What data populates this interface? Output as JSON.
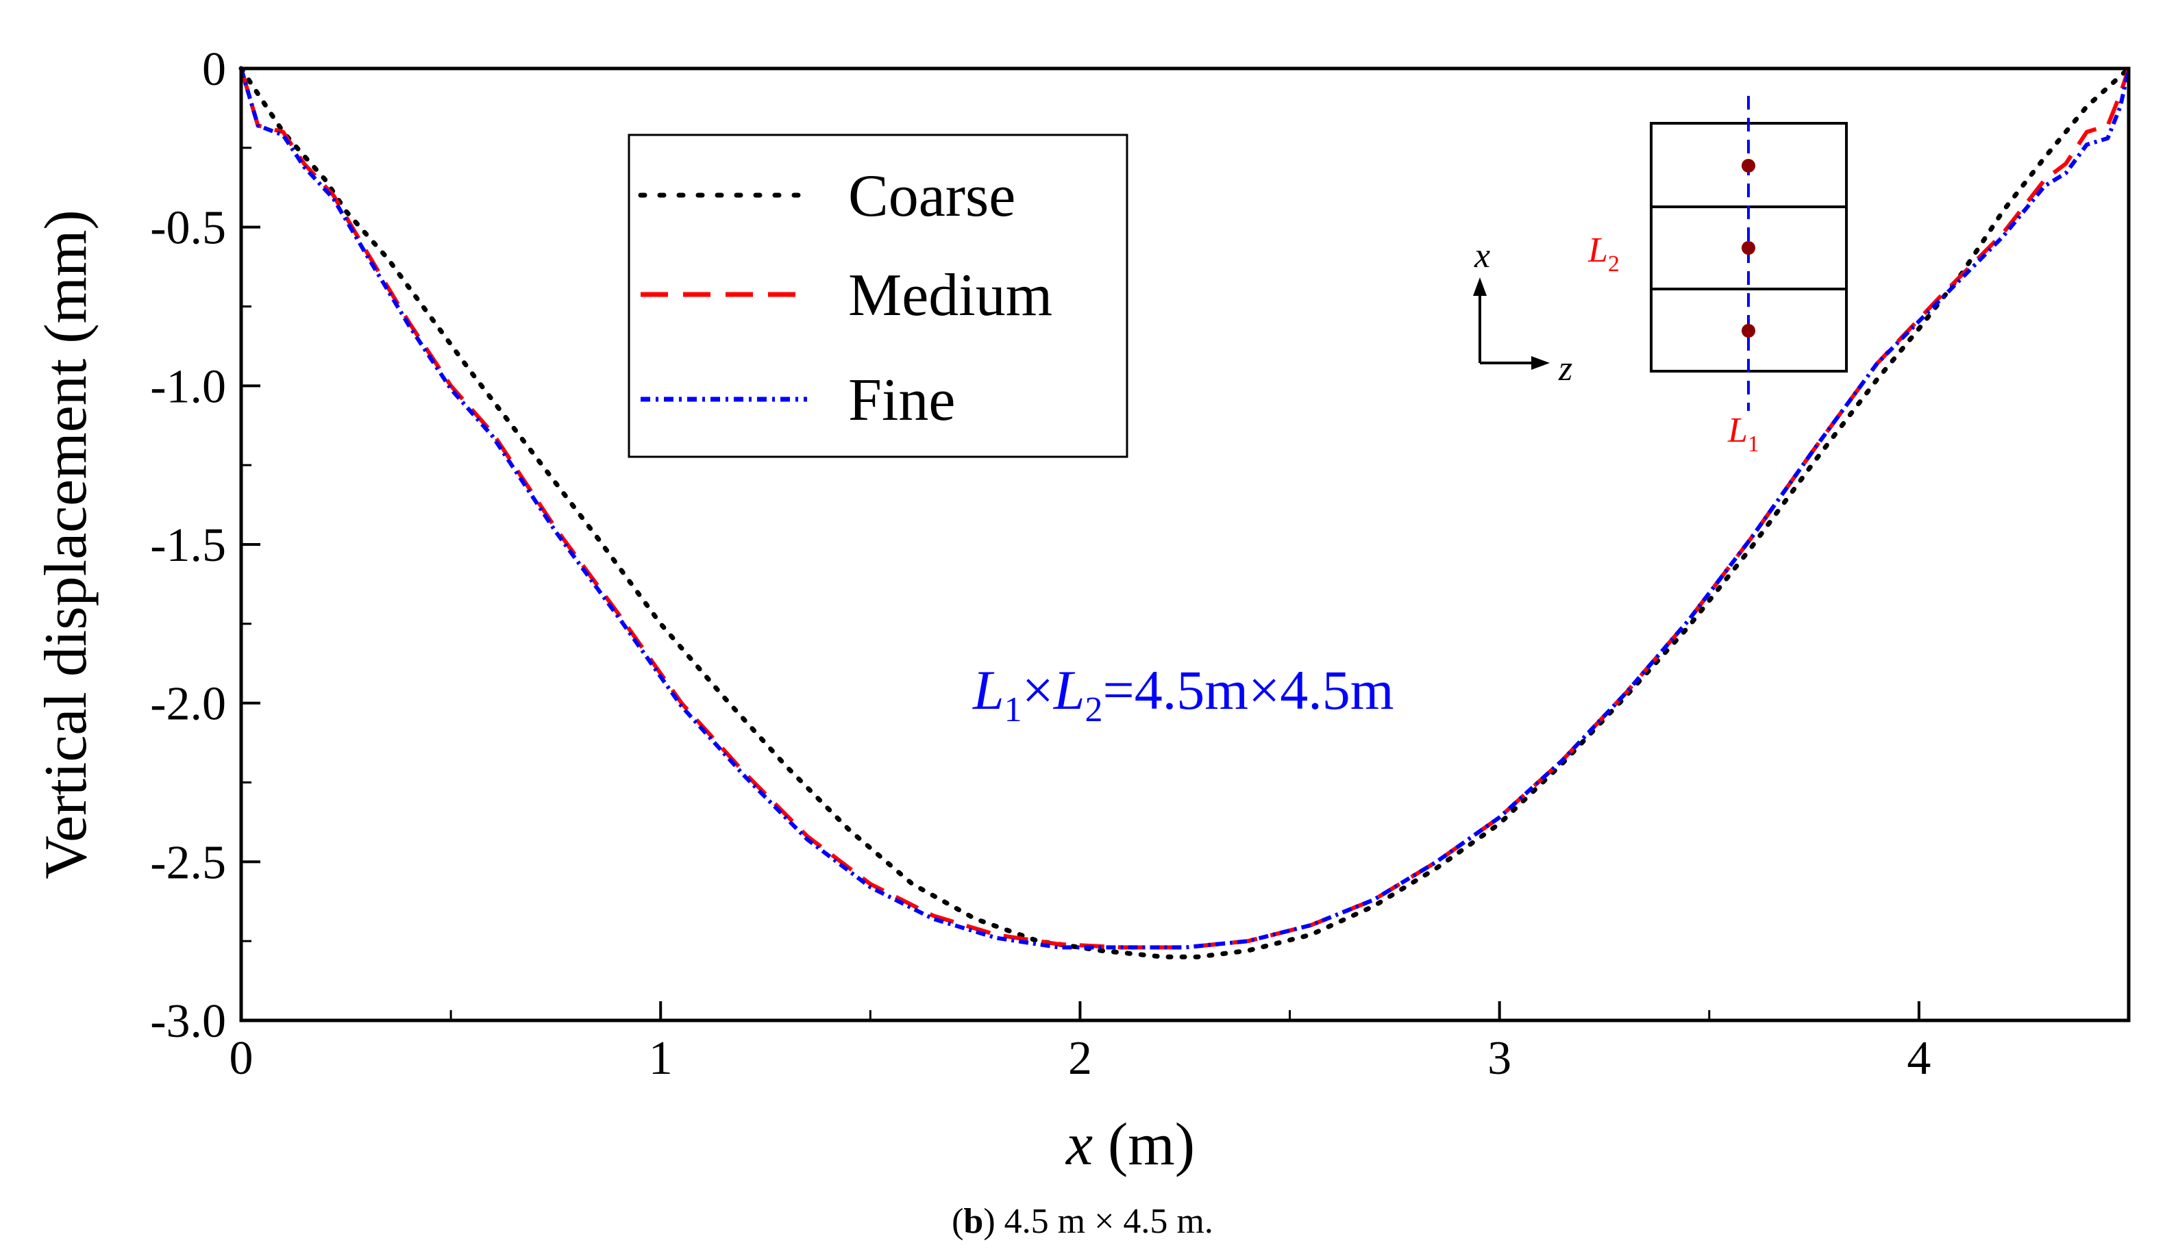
{
  "chart_data": {
    "type": "line",
    "xlabel": "x (m)",
    "xlabel_var": "x",
    "xlabel_unit": "(m)",
    "ylabel": "Vertical displacement (mm)",
    "xlim": [
      0,
      4.5
    ],
    "ylim": [
      -3.0,
      0
    ],
    "xticks": [
      0,
      1,
      2,
      3,
      4
    ],
    "xtick_labels": [
      "0",
      "1",
      "2",
      "3",
      "4"
    ],
    "yticks": [
      0,
      -0.5,
      -1.0,
      -1.5,
      -2.0,
      -2.5,
      -3.0
    ],
    "ytick_labels": [
      "0",
      "-0.5",
      "-1.0",
      "-1.5",
      "-2.0",
      "-2.5",
      "-3.0"
    ],
    "grid": false,
    "legend_position": "top-left",
    "annotation": {
      "text": "L1×L2=4.5m×4.5m",
      "l1": "L",
      "l1_sub": "1",
      "times": "×",
      "l2": "L",
      "l2_sub": "2",
      "rest": "=4.5m×4.5m"
    },
    "series": [
      {
        "name": "Coarse",
        "color": "#000000",
        "style": "dotted",
        "x": [
          0,
          0.05,
          0.1,
          0.2,
          0.25,
          0.35,
          0.45,
          0.55,
          0.7,
          0.85,
          1.0,
          1.15,
          1.3,
          1.45,
          1.6,
          1.75,
          1.9,
          2.05,
          2.2,
          2.28,
          2.4,
          2.55,
          2.7,
          2.85,
          3.0,
          3.15,
          3.3,
          3.45,
          3.6,
          3.75,
          3.9,
          4.0,
          4.1,
          4.2,
          4.3,
          4.4,
          4.45,
          4.5
        ],
        "y": [
          0,
          -0.1,
          -0.2,
          -0.35,
          -0.45,
          -0.6,
          -0.78,
          -0.96,
          -1.22,
          -1.48,
          -1.75,
          -1.98,
          -2.2,
          -2.4,
          -2.57,
          -2.68,
          -2.75,
          -2.78,
          -2.8,
          -2.8,
          -2.78,
          -2.73,
          -2.64,
          -2.52,
          -2.38,
          -2.19,
          -1.98,
          -1.76,
          -1.51,
          -1.24,
          -0.98,
          -0.82,
          -0.65,
          -0.45,
          -0.28,
          -0.12,
          -0.06,
          0
        ]
      },
      {
        "name": "Medium",
        "color": "#ff0000",
        "style": "dashed",
        "x": [
          0,
          0.04,
          0.1,
          0.15,
          0.22,
          0.3,
          0.4,
          0.5,
          0.6,
          0.75,
          0.9,
          1.05,
          1.2,
          1.35,
          1.5,
          1.65,
          1.8,
          1.95,
          2.1,
          2.25,
          2.4,
          2.55,
          2.7,
          2.85,
          3.0,
          3.15,
          3.3,
          3.45,
          3.6,
          3.75,
          3.9,
          4.05,
          4.2,
          4.3,
          4.35,
          4.4,
          4.45,
          4.48,
          4.5
        ],
        "y": [
          0,
          -0.18,
          -0.2,
          -0.3,
          -0.4,
          -0.58,
          -0.8,
          -1.0,
          -1.15,
          -1.45,
          -1.72,
          -2.0,
          -2.22,
          -2.42,
          -2.57,
          -2.67,
          -2.73,
          -2.76,
          -2.77,
          -2.77,
          -2.75,
          -2.7,
          -2.62,
          -2.5,
          -2.36,
          -2.18,
          -1.97,
          -1.74,
          -1.48,
          -1.2,
          -0.93,
          -0.72,
          -0.52,
          -0.35,
          -0.3,
          -0.2,
          -0.18,
          -0.08,
          0
        ]
      },
      {
        "name": "Fine",
        "color": "#0000ff",
        "style": "dash-dot",
        "x": [
          0,
          0.04,
          0.1,
          0.15,
          0.22,
          0.3,
          0.4,
          0.5,
          0.6,
          0.75,
          0.9,
          1.05,
          1.2,
          1.35,
          1.5,
          1.65,
          1.8,
          1.95,
          2.1,
          2.25,
          2.4,
          2.55,
          2.7,
          2.85,
          3.0,
          3.15,
          3.3,
          3.45,
          3.6,
          3.75,
          3.9,
          4.05,
          4.2,
          4.3,
          4.35,
          4.4,
          4.45,
          4.48,
          4.5
        ],
        "y": [
          0,
          -0.18,
          -0.21,
          -0.31,
          -0.41,
          -0.59,
          -0.81,
          -1.01,
          -1.16,
          -1.46,
          -1.73,
          -2.01,
          -2.23,
          -2.43,
          -2.58,
          -2.68,
          -2.74,
          -2.77,
          -2.77,
          -2.77,
          -2.75,
          -2.7,
          -2.62,
          -2.5,
          -2.36,
          -2.18,
          -1.97,
          -1.74,
          -1.48,
          -1.2,
          -0.93,
          -0.73,
          -0.53,
          -0.37,
          -0.33,
          -0.24,
          -0.22,
          -0.12,
          0
        ]
      }
    ]
  },
  "inset": {
    "axis_x_label": "x",
    "axis_z_label": "z",
    "l2_label": "L",
    "l2_sub": "2",
    "l1_label": "L",
    "l1_sub": "1"
  },
  "caption": {
    "paren_open": "(",
    "letter": "b",
    "rest": ") 4.5 m × 4.5 m."
  }
}
